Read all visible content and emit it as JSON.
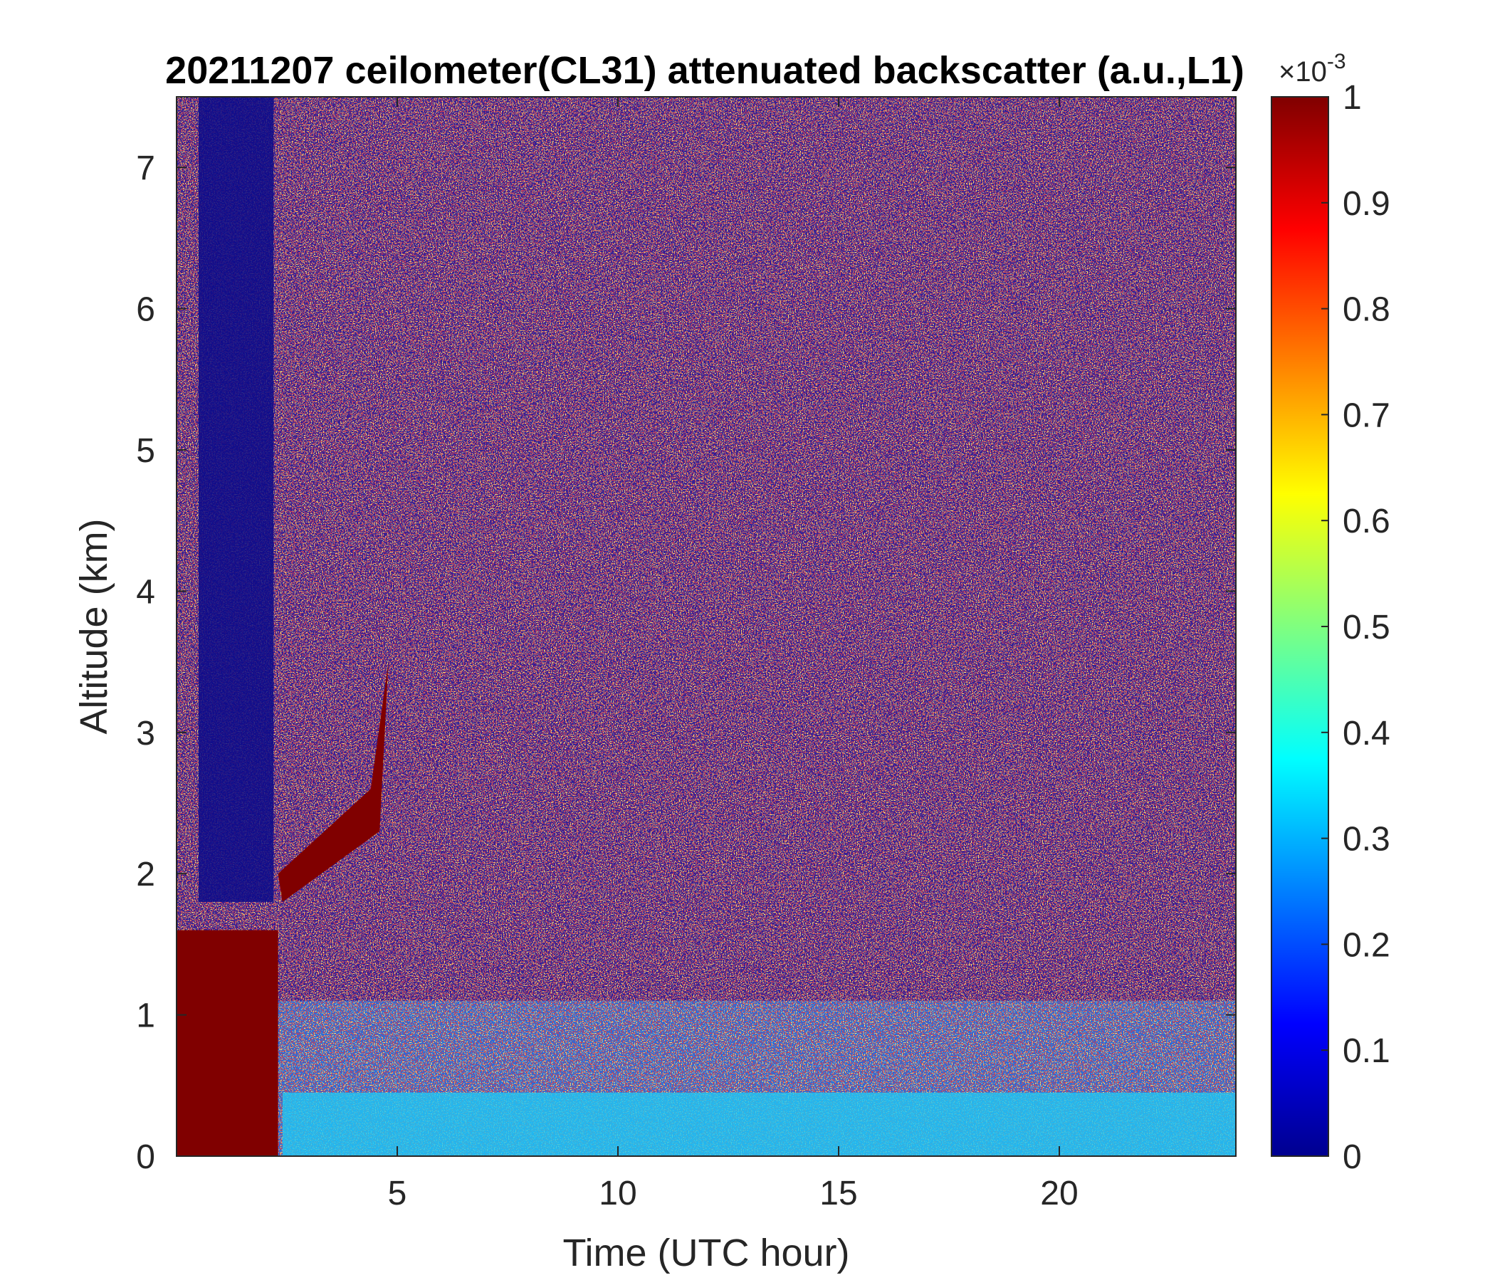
{
  "chart_data": {
    "type": "heatmap",
    "title": "20211207 ceilometer(CL31) attenuated backscatter (a.u.,L1)",
    "xlabel": "Time (UTC hour)",
    "ylabel": "Altitude (km)",
    "xlim": [
      0,
      24
    ],
    "ylim": [
      0,
      7.5
    ],
    "xticks": [
      5,
      10,
      15,
      20
    ],
    "yticks": [
      0,
      1,
      2,
      3,
      4,
      5,
      6,
      7
    ],
    "colorbar": {
      "colormap": "jet",
      "min": 0,
      "max": 0.001,
      "multiplier_label": "×10",
      "multiplier_exponent": "-3",
      "ticks": [
        0,
        0.1,
        0.2,
        0.3,
        0.4,
        0.5,
        0.6,
        0.7,
        0.8,
        0.9,
        1
      ]
    }
  }
}
